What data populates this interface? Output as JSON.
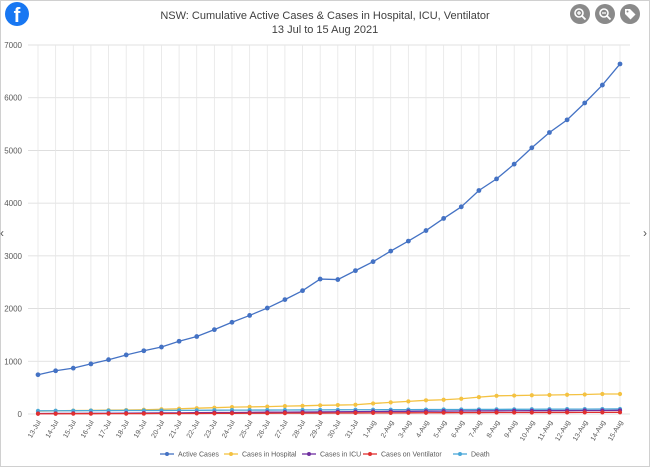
{
  "toolbar": {
    "logo_glyph": "f",
    "logo_icon": "facebook-icon",
    "buttons": [
      {
        "icon": "zoom-in-icon"
      },
      {
        "icon": "zoom-out-icon"
      },
      {
        "icon": "tag-icon"
      }
    ]
  },
  "chart_data": {
    "type": "line",
    "title": "NSW: Cumulative Active Cases & Cases in Hospital, ICU, Ventilator",
    "subtitle": "13 Jul to 15 Aug 2021",
    "xlabel": "",
    "ylabel": "",
    "ylim": [
      0,
      7000
    ],
    "yticks": [
      0,
      1000,
      2000,
      3000,
      4000,
      5000,
      6000,
      7000
    ],
    "grid": true,
    "legend_position": "bottom",
    "categories": [
      "13-Jul",
      "14-Jul",
      "15-Jul",
      "16-Jul",
      "17-Jul",
      "18-Jul",
      "19-Jul",
      "20-Jul",
      "21-Jul",
      "22-Jul",
      "23-Jul",
      "24-Jul",
      "25-Jul",
      "26-Jul",
      "27-Jul",
      "28-Jul",
      "29-Jul",
      "30-Jul",
      "31-Jul",
      "1-Aug",
      "2-Aug",
      "3-Aug",
      "4-Aug",
      "5-Aug",
      "6-Aug",
      "7-Aug",
      "8-Aug",
      "9-Aug",
      "10-Aug",
      "11-Aug",
      "12-Aug",
      "13-Aug",
      "14-Aug",
      "15-Aug"
    ],
    "series": [
      {
        "name": "Active Cases",
        "color": "#4472c4",
        "values": [
          745,
          820,
          870,
          950,
          1030,
          1120,
          1200,
          1270,
          1380,
          1470,
          1600,
          1740,
          1870,
          2010,
          2170,
          2340,
          2560,
          2550,
          2720,
          2890,
          3090,
          3280,
          3480,
          3710,
          3930,
          4240,
          4460,
          4740,
          5050,
          5340,
          5580,
          5900,
          6240,
          6640
        ]
      },
      {
        "name": "Cases in Hospital",
        "color": "#f4c242",
        "values": [
          55,
          60,
          65,
          68,
          72,
          75,
          80,
          90,
          100,
          110,
          120,
          130,
          135,
          140,
          150,
          155,
          165,
          170,
          175,
          200,
          220,
          240,
          260,
          270,
          290,
          320,
          345,
          350,
          355,
          360,
          365,
          370,
          380,
          380
        ]
      },
      {
        "name": "Cases in ICU",
        "color": "#7030a0",
        "values": [
          10,
          11,
          12,
          13,
          14,
          16,
          18,
          20,
          22,
          25,
          27,
          29,
          31,
          34,
          36,
          38,
          40,
          42,
          45,
          47,
          49,
          51,
          53,
          55,
          57,
          59,
          60,
          62,
          63,
          64,
          65,
          66,
          67,
          70
        ]
      },
      {
        "name": "Cases on Ventilator",
        "color": "#e03030",
        "values": [
          5,
          5,
          6,
          6,
          7,
          7,
          8,
          9,
          10,
          11,
          12,
          13,
          14,
          15,
          16,
          17,
          18,
          19,
          20,
          21,
          22,
          23,
          24,
          25,
          26,
          27,
          28,
          29,
          29,
          30,
          30,
          31,
          31,
          32
        ]
      },
      {
        "name": "Death",
        "color": "#4aa8d8",
        "values": [
          60,
          62,
          63,
          64,
          65,
          66,
          67,
          68,
          69,
          70,
          72,
          73,
          74,
          75,
          76,
          77,
          78,
          79,
          80,
          81,
          82,
          83,
          84,
          85,
          86,
          87,
          88,
          89,
          90,
          91,
          92,
          93,
          94,
          96
        ]
      }
    ]
  }
}
